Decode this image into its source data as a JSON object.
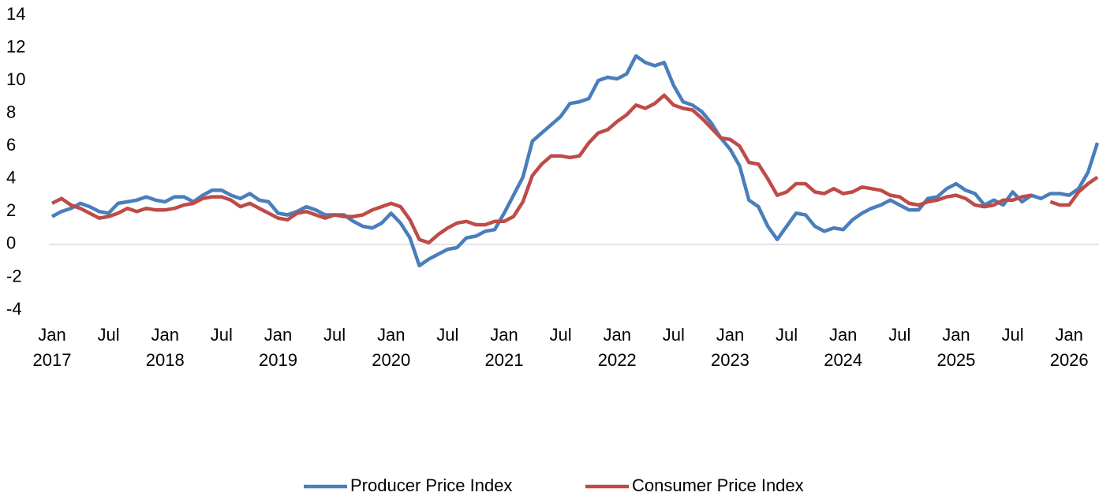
{
  "chart_data": {
    "type": "line",
    "categories": [
      "Jan 2017",
      null,
      null,
      null,
      null,
      null,
      "Jul",
      null,
      null,
      null,
      null,
      null,
      "Jan 2018",
      null,
      null,
      null,
      null,
      null,
      "Jul",
      null,
      null,
      null,
      null,
      null,
      "Jan 2019",
      null,
      null,
      null,
      null,
      null,
      "Jul",
      null,
      null,
      null,
      null,
      null,
      "Jan 2020",
      null,
      null,
      null,
      null,
      null,
      "Jul",
      null,
      null,
      null,
      null,
      null,
      "Jan 2021",
      null,
      null,
      null,
      null,
      null,
      "Jul",
      null,
      null,
      null,
      null,
      null,
      "Jan 2022",
      null,
      null,
      null,
      null,
      null,
      "Jul",
      null,
      null,
      null,
      null,
      null,
      "Jan 2023",
      null,
      null,
      null,
      null,
      null,
      "Jul",
      null,
      null,
      null,
      null,
      null,
      "Jan 2024",
      null,
      null,
      null,
      null,
      null,
      "Jul",
      null,
      null,
      null,
      null,
      null,
      "Jan 2025",
      null,
      null,
      null,
      null,
      null,
      "Jul",
      null,
      null,
      null,
      null,
      null,
      "Jan 2026",
      null,
      null,
      null
    ],
    "series": [
      {
        "name": "Producer Price Index",
        "color": "#4a7ebb",
        "values": [
          1.7,
          2.0,
          2.2,
          2.5,
          2.3,
          2.0,
          1.9,
          2.5,
          2.6,
          2.7,
          2.9,
          2.7,
          2.6,
          2.9,
          2.9,
          2.6,
          3.0,
          3.3,
          3.3,
          3.0,
          2.8,
          3.1,
          2.7,
          2.6,
          1.9,
          1.8,
          2.0,
          2.3,
          2.1,
          1.8,
          1.8,
          1.8,
          1.4,
          1.1,
          1.0,
          1.3,
          1.9,
          1.3,
          0.4,
          -1.3,
          -0.9,
          -0.6,
          -0.3,
          -0.2,
          0.4,
          0.5,
          0.8,
          0.9,
          1.9,
          3.0,
          4.1,
          6.3,
          6.8,
          7.3,
          7.8,
          8.6,
          8.7,
          8.9,
          10.0,
          10.2,
          10.1,
          10.4,
          11.5,
          11.1,
          10.9,
          11.1,
          9.7,
          8.7,
          8.5,
          8.1,
          7.4,
          6.5,
          5.8,
          4.8,
          2.7,
          2.3,
          1.1,
          0.3,
          1.1,
          1.9,
          1.8,
          1.1,
          0.8,
          1.0,
          0.9,
          1.5,
          1.9,
          2.2,
          2.4,
          2.7,
          2.4,
          2.1,
          2.1,
          2.8,
          2.9,
          3.4,
          3.7,
          3.3,
          3.1,
          2.4,
          2.7,
          2.4,
          3.2,
          2.6,
          3.0,
          2.8,
          3.1,
          3.1,
          3.0,
          3.4,
          4.4,
          6.2
        ]
      },
      {
        "name": "Consumer Price Index",
        "color": "#be4b48",
        "values": [
          2.5,
          2.8,
          2.4,
          2.2,
          1.9,
          1.6,
          1.7,
          1.9,
          2.2,
          2.0,
          2.2,
          2.1,
          2.1,
          2.2,
          2.4,
          2.5,
          2.8,
          2.9,
          2.9,
          2.7,
          2.3,
          2.5,
          2.2,
          1.9,
          1.6,
          1.5,
          1.9,
          2.0,
          1.8,
          1.6,
          1.8,
          1.7,
          1.7,
          1.8,
          2.1,
          2.3,
          2.5,
          2.3,
          1.5,
          0.3,
          0.1,
          0.6,
          1.0,
          1.3,
          1.4,
          1.2,
          1.2,
          1.4,
          1.4,
          1.7,
          2.6,
          4.2,
          4.9,
          5.4,
          5.4,
          5.3,
          5.4,
          6.2,
          6.8,
          7.0,
          7.5,
          7.9,
          8.5,
          8.3,
          8.6,
          9.1,
          8.5,
          8.3,
          8.2,
          7.7,
          7.1,
          6.5,
          6.4,
          6.0,
          5.0,
          4.9,
          4.0,
          3.0,
          3.2,
          3.7,
          3.7,
          3.2,
          3.1,
          3.4,
          3.1,
          3.2,
          3.5,
          3.4,
          3.3,
          3.0,
          2.9,
          2.5,
          2.4,
          2.6,
          2.7,
          2.9,
          3.0,
          2.8,
          2.4,
          2.3,
          2.4,
          2.7,
          2.7,
          2.9,
          3.0,
          null,
          2.6,
          2.4,
          2.4,
          3.2,
          3.7,
          4.1
        ]
      }
    ],
    "ylim": [
      -4,
      14
    ],
    "yticks": [
      -4,
      -2,
      0,
      2,
      4,
      6,
      8,
      10,
      12,
      14
    ],
    "grid": false,
    "legend": "bottom"
  }
}
